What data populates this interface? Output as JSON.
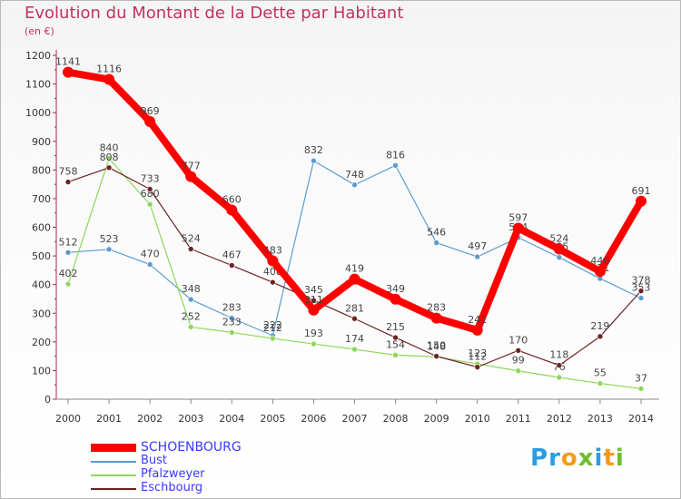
{
  "title": "Evolution du Montant de la Dette par Habitant",
  "unit_label": "(en €)",
  "logo": {
    "letters": [
      "P",
      "r",
      "o",
      "x",
      "i",
      "t",
      "i"
    ],
    "colors": [
      "#2a9de0",
      "#2a9de0",
      "#f39a1d",
      "#6cbf2a",
      "#2a9de0",
      "#f39a1d",
      "#6cbf2a"
    ]
  },
  "chart_data": {
    "type": "line",
    "x": [
      "2000",
      "2001",
      "2002",
      "2003",
      "2004",
      "2005",
      "2006",
      "2007",
      "2008",
      "2009",
      "2010",
      "2011",
      "2012",
      "2013",
      "2014"
    ],
    "ylim": [
      0,
      1200
    ],
    "yticks": [
      0,
      100,
      200,
      300,
      400,
      500,
      600,
      700,
      800,
      900,
      1000,
      1100,
      1200
    ],
    "grid": false,
    "legend_position": "bottom-left",
    "series": [
      {
        "name": "Bust",
        "color": "#5b9bd0",
        "values": [
          512,
          523,
          470,
          348,
          283,
          222,
          832,
          748,
          816,
          546,
          497,
          564,
          495,
          421,
          353
        ]
      },
      {
        "name": "Pfalzweyer",
        "color": "#8fd65a",
        "values": [
          402,
          840,
          680,
          252,
          233,
          212,
          193,
          174,
          154,
          148,
          123,
          99,
          76,
          55,
          37
        ]
      },
      {
        "name": "Eschbourg",
        "color": "#6b2323",
        "values": [
          758,
          808,
          733,
          524,
          467,
          408,
          345,
          281,
          215,
          150,
          112,
          170,
          118,
          219,
          378
        ]
      },
      {
        "name": "SCHOENBOURG",
        "color": "#ff0000",
        "values": [
          1141,
          1116,
          969,
          777,
          660,
          483,
          311,
          419,
          349,
          283,
          241,
          597,
          524,
          446,
          691
        ]
      }
    ],
    "legend_order": [
      "SCHOENBOURG",
      "Bust",
      "Pfalzweyer",
      "Eschbourg"
    ]
  }
}
